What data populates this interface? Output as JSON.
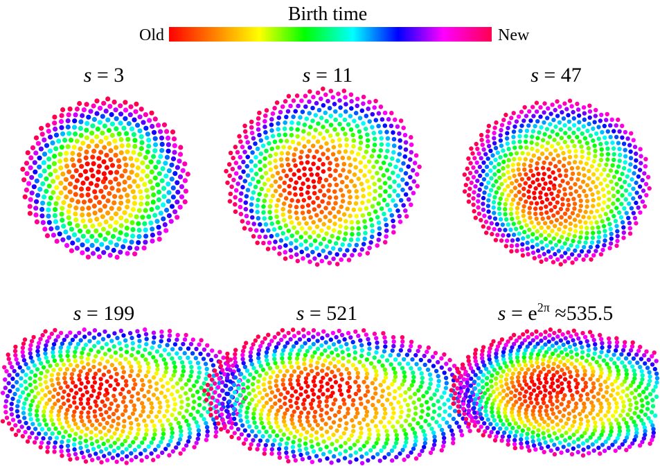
{
  "legend": {
    "title": "Birth time",
    "left_label": "Old",
    "right_label": "New",
    "gradient_colors": [
      "#ff0000",
      "#ff8000",
      "#ffff00",
      "#00ff00",
      "#00ffff",
      "#0000ff",
      "#ff00ff",
      "#ff0050"
    ]
  },
  "panels": [
    {
      "var": "s",
      "eq": "=",
      "value": "3",
      "exp": "",
      "tail": ""
    },
    {
      "var": "s",
      "eq": "=",
      "value": "11",
      "exp": "",
      "tail": ""
    },
    {
      "var": "s",
      "eq": "=",
      "value": "47",
      "exp": "",
      "tail": ""
    },
    {
      "var": "s",
      "eq": "=",
      "value": "199",
      "exp": "",
      "tail": ""
    },
    {
      "var": "s",
      "eq": "=",
      "value": "521",
      "exp": "",
      "tail": ""
    },
    {
      "var": "s",
      "eq": "=",
      "value": "e",
      "exp": "2π",
      "tail": " ≈535.5"
    }
  ]
}
